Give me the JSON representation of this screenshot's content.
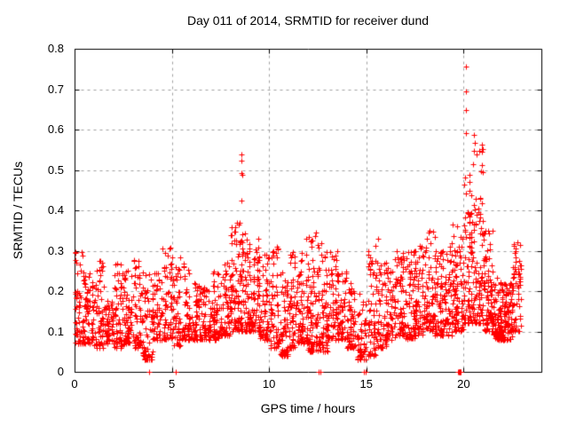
{
  "chart_data": {
    "type": "scatter",
    "title": "Day 011 of 2014, SRMTID for receiver dund",
    "xlabel": "GPS time / hours",
    "ylabel": "SRMTID / TECUs",
    "xlim": [
      0,
      24
    ],
    "ylim": [
      0,
      0.8
    ],
    "xticks": [
      0,
      5,
      10,
      15,
      20
    ],
    "xtick_labels": [
      "0",
      "5",
      "10",
      "15",
      "20"
    ],
    "yticks": [
      0,
      0.1,
      0.2,
      0.3,
      0.4,
      0.5,
      0.6,
      0.7,
      0.8
    ],
    "ytick_labels": [
      "0",
      "0.1",
      "0.2",
      "0.3",
      "0.4",
      "0.5",
      "0.6",
      "0.7",
      "0.8"
    ],
    "grid": true,
    "legend_position": "none",
    "marker_glyph": "+",
    "marker_color": "#ff0000",
    "axis_color": "#000000",
    "grid_color": "#a0a0a0",
    "background_color": "#ffffff",
    "data_time_span_hours": [
      0,
      22.9
    ],
    "seed": 42,
    "density_bins_format": [
      "x_start",
      "x_end",
      "count",
      "y_min",
      "y_max",
      "high_cluster_prob",
      "high_cluster_y_min",
      "high_cluster_y_max"
    ],
    "density_bins": [
      [
        0.0,
        0.5,
        65,
        0.07,
        0.3,
        0,
        0,
        0
      ],
      [
        0.5,
        1.0,
        60,
        0.07,
        0.25,
        0,
        0,
        0
      ],
      [
        1.0,
        1.5,
        60,
        0.06,
        0.28,
        0,
        0,
        0
      ],
      [
        1.5,
        2.0,
        55,
        0.07,
        0.18,
        0,
        0,
        0
      ],
      [
        2.0,
        2.5,
        60,
        0.06,
        0.28,
        0,
        0,
        0
      ],
      [
        2.5,
        3.0,
        60,
        0.07,
        0.26,
        0,
        0,
        0
      ],
      [
        3.0,
        3.5,
        60,
        0.06,
        0.28,
        0,
        0,
        0
      ],
      [
        3.5,
        4.0,
        60,
        0.03,
        0.25,
        0,
        0,
        0
      ],
      [
        4.0,
        4.5,
        55,
        0.08,
        0.25,
        0,
        0,
        0
      ],
      [
        4.5,
        5.0,
        55,
        0.08,
        0.31,
        0,
        0,
        0
      ],
      [
        5.0,
        5.5,
        60,
        0.06,
        0.29,
        0,
        0,
        0
      ],
      [
        5.5,
        6.0,
        55,
        0.08,
        0.27,
        0,
        0,
        0
      ],
      [
        6.0,
        6.5,
        55,
        0.08,
        0.22,
        0,
        0,
        0
      ],
      [
        6.5,
        7.0,
        55,
        0.08,
        0.22,
        0,
        0,
        0
      ],
      [
        7.0,
        7.5,
        60,
        0.08,
        0.26,
        0,
        0,
        0
      ],
      [
        7.5,
        8.0,
        60,
        0.09,
        0.28,
        0,
        0,
        0
      ],
      [
        8.0,
        8.5,
        80,
        0.1,
        0.37,
        0,
        0,
        0
      ],
      [
        8.5,
        9.0,
        80,
        0.1,
        0.35,
        0.1,
        0.28,
        0.38
      ],
      [
        9.0,
        9.5,
        70,
        0.1,
        0.33,
        0,
        0,
        0
      ],
      [
        9.5,
        10.0,
        65,
        0.08,
        0.3,
        0,
        0,
        0
      ],
      [
        10.0,
        10.5,
        65,
        0.06,
        0.31,
        0,
        0,
        0
      ],
      [
        10.5,
        11.0,
        65,
        0.04,
        0.25,
        0,
        0,
        0
      ],
      [
        11.0,
        11.5,
        65,
        0.06,
        0.3,
        0,
        0,
        0
      ],
      [
        11.5,
        12.0,
        70,
        0.07,
        0.31,
        0,
        0,
        0
      ],
      [
        12.0,
        12.5,
        70,
        0.05,
        0.34,
        0,
        0,
        0
      ],
      [
        12.5,
        13.0,
        70,
        0.05,
        0.32,
        0,
        0,
        0
      ],
      [
        13.0,
        13.5,
        65,
        0.08,
        0.3,
        0,
        0,
        0
      ],
      [
        13.5,
        14.0,
        60,
        0.08,
        0.26,
        0,
        0,
        0
      ],
      [
        14.0,
        14.5,
        60,
        0.06,
        0.22,
        0,
        0,
        0
      ],
      [
        14.5,
        15.0,
        60,
        0.03,
        0.2,
        0,
        0,
        0
      ],
      [
        15.0,
        15.5,
        60,
        0.04,
        0.32,
        0,
        0,
        0
      ],
      [
        15.5,
        16.0,
        60,
        0.06,
        0.28,
        0,
        0,
        0
      ],
      [
        16.0,
        16.5,
        65,
        0.08,
        0.28,
        0,
        0,
        0
      ],
      [
        16.5,
        17.0,
        65,
        0.09,
        0.3,
        0,
        0,
        0
      ],
      [
        17.0,
        17.5,
        65,
        0.08,
        0.31,
        0,
        0,
        0
      ],
      [
        17.5,
        18.0,
        70,
        0.09,
        0.32,
        0,
        0,
        0
      ],
      [
        18.0,
        18.5,
        70,
        0.1,
        0.35,
        0,
        0,
        0
      ],
      [
        18.5,
        19.0,
        70,
        0.09,
        0.3,
        0,
        0,
        0
      ],
      [
        19.0,
        19.5,
        70,
        0.09,
        0.34,
        0,
        0,
        0
      ],
      [
        19.5,
        20.0,
        75,
        0.1,
        0.37,
        0,
        0,
        0
      ],
      [
        20.0,
        20.5,
        85,
        0.12,
        0.42,
        0.12,
        0.33,
        0.5
      ],
      [
        20.5,
        21.0,
        90,
        0.12,
        0.42,
        0.22,
        0.38,
        0.57
      ],
      [
        21.0,
        21.5,
        85,
        0.1,
        0.35,
        0,
        0,
        0
      ],
      [
        21.5,
        22.0,
        100,
        0.08,
        0.24,
        0,
        0,
        0
      ],
      [
        22.0,
        22.5,
        90,
        0.08,
        0.22,
        0,
        0,
        0
      ],
      [
        22.5,
        22.9,
        60,
        0.1,
        0.33,
        0.3,
        0.2,
        0.33
      ]
    ],
    "outlier_points": [
      [
        0.05,
        0.295
      ],
      [
        0.07,
        0.27
      ],
      [
        4.52,
        0.305
      ],
      [
        8.35,
        0.37
      ],
      [
        8.45,
        0.365
      ],
      [
        8.58,
        0.538
      ],
      [
        8.6,
        0.522
      ],
      [
        8.57,
        0.492
      ],
      [
        8.62,
        0.488
      ],
      [
        8.59,
        0.424
      ],
      [
        11.93,
        0.33
      ],
      [
        12.42,
        0.345
      ],
      [
        15.62,
        0.33
      ],
      [
        18.25,
        0.35
      ],
      [
        19.45,
        0.365
      ],
      [
        20.1,
        0.755
      ],
      [
        20.11,
        0.695
      ],
      [
        20.1,
        0.648
      ],
      [
        20.13,
        0.592
      ],
      [
        20.55,
        0.586
      ],
      [
        20.58,
        0.566
      ]
    ],
    "zero_value_points": [
      [
        3.85,
        0
      ],
      [
        5.22,
        0
      ],
      [
        12.55,
        0
      ],
      [
        12.63,
        0
      ],
      [
        14.88,
        0
      ],
      [
        14.97,
        0
      ],
      [
        19.72,
        0
      ],
      [
        19.74,
        0
      ],
      [
        19.76,
        0
      ],
      [
        19.78,
        0
      ],
      [
        19.8,
        0
      ],
      [
        19.82,
        0
      ],
      [
        19.84,
        0
      ],
      [
        19.86,
        0
      ]
    ]
  }
}
